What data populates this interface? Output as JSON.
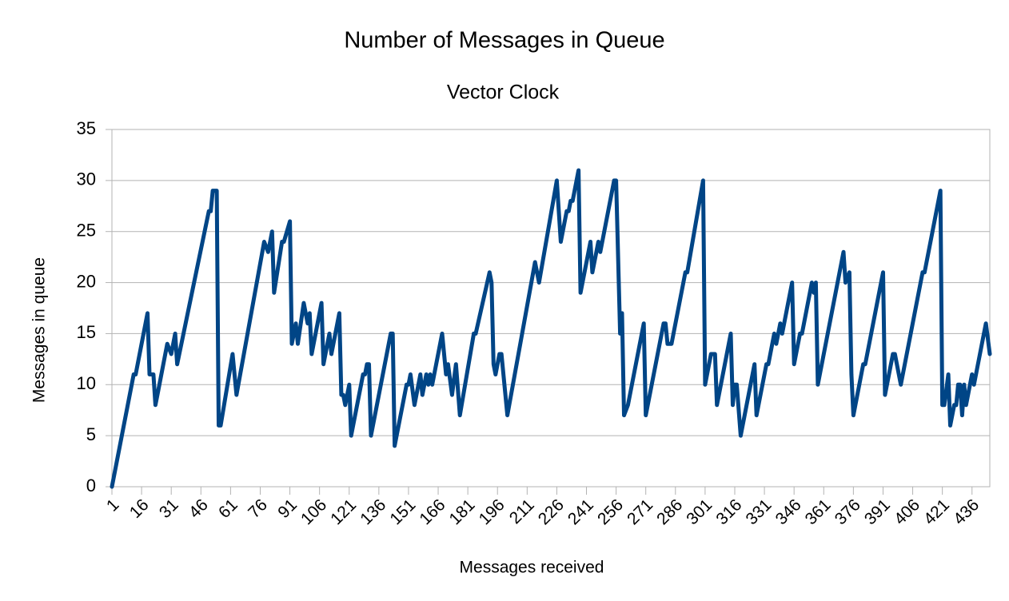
{
  "chart_data": {
    "type": "line",
    "title": "Number of Messages in Queue",
    "subtitle": "Vector Clock",
    "x_label": "Messages received",
    "y_label": "Messages in queue",
    "color": "#004586",
    "grid": true,
    "xlim": [
      1,
      445
    ],
    "ylim": [
      0,
      35
    ],
    "xticks": [
      1,
      16,
      31,
      46,
      61,
      76,
      91,
      106,
      121,
      136,
      151,
      166,
      181,
      196,
      211,
      226,
      241,
      256,
      271,
      286,
      301,
      316,
      331,
      346,
      361,
      376,
      391,
      406,
      421,
      436
    ],
    "yticks": [
      0,
      5,
      10,
      15,
      20,
      25,
      30,
      35
    ],
    "x": [
      1,
      12,
      13,
      19,
      20,
      22,
      23,
      24,
      29,
      31,
      33,
      34,
      50,
      51,
      52,
      54,
      55,
      56,
      62,
      64,
      78,
      80,
      82,
      83,
      87,
      88,
      91,
      92,
      94,
      95,
      98,
      100,
      101,
      102,
      107,
      108,
      111,
      112,
      116,
      117,
      118,
      119,
      121,
      122,
      128,
      129,
      130,
      131,
      132,
      142,
      143,
      144,
      150,
      151,
      152,
      154,
      157,
      158,
      160,
      161,
      162,
      163,
      168,
      170,
      171,
      173,
      175,
      177,
      184,
      185,
      192,
      193,
      194,
      195,
      197,
      198,
      201,
      215,
      217,
      226,
      228,
      231,
      232,
      233,
      234,
      237,
      238,
      243,
      244,
      247,
      248,
      255,
      256,
      258,
      259,
      260,
      262,
      270,
      271,
      280,
      281,
      282,
      284,
      291,
      292,
      300,
      301,
      304,
      306,
      307,
      314,
      315,
      316,
      317,
      319,
      326,
      327,
      332,
      333,
      336,
      337,
      339,
      340,
      345,
      346,
      349,
      350,
      355,
      356,
      357,
      358,
      371,
      372,
      374,
      375,
      376,
      381,
      382,
      391,
      392,
      396,
      397,
      400,
      411,
      412,
      420,
      421,
      422,
      424,
      425,
      427,
      428,
      429,
      430,
      431,
      432,
      433,
      436,
      437,
      443,
      445
    ],
    "values": [
      0,
      11,
      11,
      17,
      11,
      11,
      8,
      9,
      14,
      13,
      15,
      12,
      27,
      27,
      29,
      29,
      6,
      6,
      13,
      9,
      24,
      23,
      25,
      19,
      24,
      24,
      26,
      14,
      16,
      14,
      18,
      16,
      17,
      13,
      18,
      12,
      15,
      13,
      17,
      9,
      9,
      8,
      10,
      5,
      11,
      11,
      12,
      12,
      5,
      15,
      15,
      4,
      10,
      10,
      11,
      8,
      11,
      9,
      11,
      10,
      11,
      10,
      15,
      11,
      12,
      9,
      12,
      7,
      15,
      15,
      21,
      20,
      12,
      11,
      13,
      13,
      7,
      22,
      20,
      30,
      24,
      27,
      27,
      28,
      28,
      31,
      19,
      24,
      21,
      24,
      23,
      30,
      30,
      15,
      17,
      7,
      8,
      16,
      7,
      16,
      16,
      14,
      14,
      21,
      21,
      30,
      10,
      13,
      13,
      8,
      15,
      8,
      10,
      10,
      5,
      12,
      7,
      12,
      12,
      15,
      14,
      16,
      15,
      20,
      12,
      15,
      15,
      20,
      19,
      20,
      10,
      23,
      20,
      21,
      11,
      7,
      12,
      12,
      21,
      9,
      13,
      13,
      10,
      21,
      21,
      29,
      8,
      8,
      11,
      6,
      8,
      8,
      10,
      10,
      7,
      10,
      8,
      11,
      10,
      16,
      13
    ]
  }
}
